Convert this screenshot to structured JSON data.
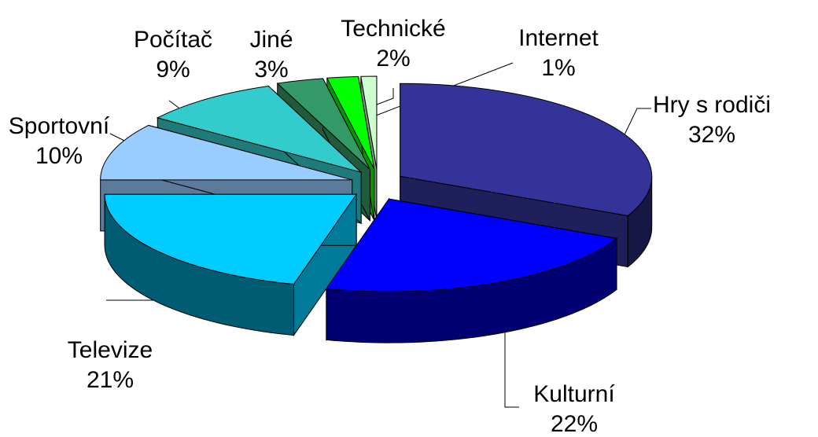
{
  "chart_data": {
    "type": "pie3d",
    "categories": [
      "Hry s rodiči",
      "Kulturní",
      "Televize",
      "Sportovní",
      "Počítač",
      "Jiné",
      "Technické",
      "Internet"
    ],
    "values": [
      32,
      22,
      21,
      10,
      9,
      3,
      2,
      1
    ],
    "value_labels": [
      "32%",
      "22%",
      "21%",
      "10%",
      "9%",
      "3%",
      "2%",
      "1%"
    ],
    "colors": [
      "#333399",
      "#0000ff",
      "#00ccff",
      "#99ccff",
      "#33cccc",
      "#339966",
      "#00ff00",
      "#ccffcc"
    ]
  }
}
